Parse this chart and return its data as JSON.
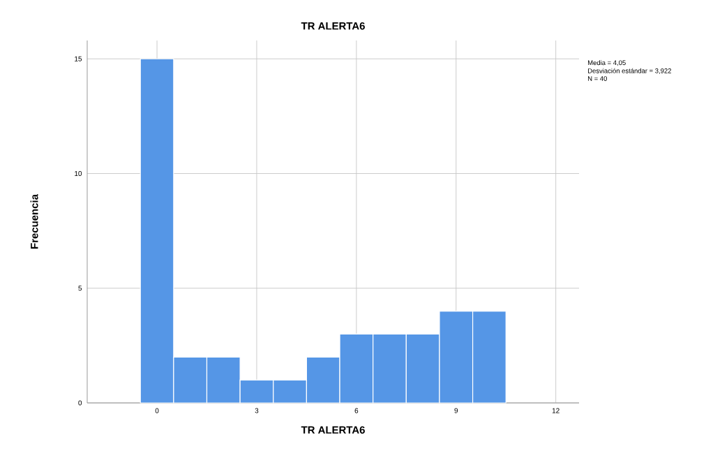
{
  "chart_data": {
    "type": "histogram",
    "title": "TR ALERTA6",
    "xlabel": "TR ALERTA6",
    "ylabel": "Frecuencia",
    "bins": [
      -0.5,
      0.5,
      1.5,
      2.5,
      3.5,
      4.5,
      5.5,
      6.5,
      7.5,
      8.5,
      9.5,
      10.5
    ],
    "values": [
      15,
      2,
      2,
      1,
      1,
      2,
      3,
      3,
      3,
      4,
      4
    ],
    "color": "#5596e6",
    "xlim": [
      -2.1,
      12.7
    ],
    "ylim": [
      0,
      15.8
    ],
    "xticks": [
      0,
      3,
      6,
      9,
      12
    ],
    "yticks": [
      0,
      5,
      10,
      15
    ],
    "grid": true,
    "annotations": [
      "Media = 4,05",
      "Desviación estándar = 3,922",
      "N = 40"
    ]
  }
}
